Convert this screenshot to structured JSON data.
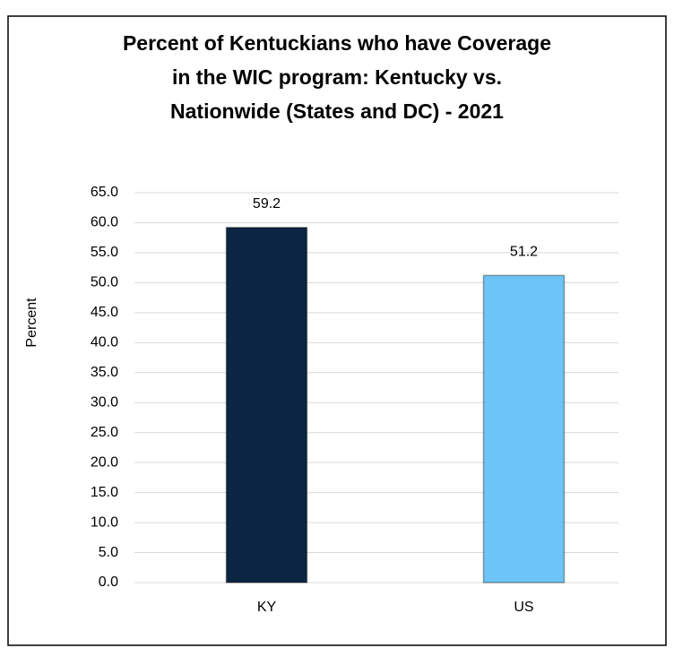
{
  "chart_data": {
    "type": "bar",
    "title": [
      "Percent of Kentuckians who have Coverage",
      "in the WIC program: Kentucky vs.",
      "Nationwide (States and DC) - 2021"
    ],
    "y_label": "Percent",
    "categories": [
      "KY",
      "US"
    ],
    "values": [
      59.2,
      51.2
    ],
    "colors": [
      "#0b2542",
      "#6cc5f6"
    ],
    "ylim": [
      0,
      65
    ],
    "yticks": [
      {
        "value": 0,
        "label": "0.0"
      },
      {
        "value": 5,
        "label": "5.0"
      },
      {
        "value": 10,
        "label": "10.0"
      },
      {
        "value": 15,
        "label": "15.0"
      },
      {
        "value": 20,
        "label": "20.0"
      },
      {
        "value": 25,
        "label": "25.0"
      },
      {
        "value": 30,
        "label": "30.0"
      },
      {
        "value": 35,
        "label": "35.0"
      },
      {
        "value": 40,
        "label": "40.0"
      },
      {
        "value": 45,
        "label": "45.0"
      },
      {
        "value": 50,
        "label": "50.0"
      },
      {
        "value": 55,
        "label": "55.0"
      },
      {
        "value": 60,
        "label": "60.0"
      },
      {
        "value": 65,
        "label": "65.0"
      }
    ],
    "grid": true
  }
}
